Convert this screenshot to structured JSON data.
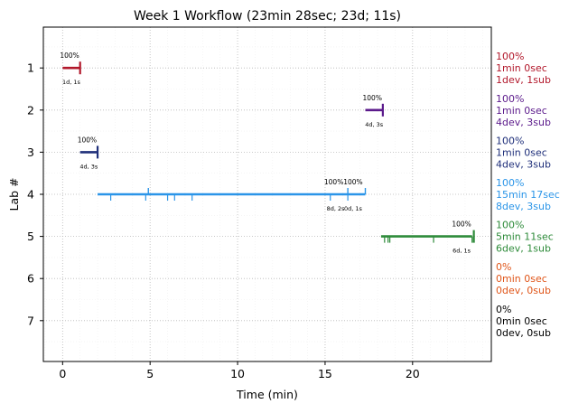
{
  "chart_data": {
    "type": "timeline",
    "title": "Week 1 Workflow (23min 28sec; 23d; 11s)",
    "xlabel": "Time (min)",
    "ylabel": "Lab #",
    "xlim": [
      -1.1,
      24.5
    ],
    "ylim": [
      7.97,
      0.03
    ],
    "xticks": [
      0,
      5,
      10,
      15,
      20
    ],
    "yticks": [
      1,
      2,
      3,
      4,
      5,
      6,
      7
    ],
    "grid": true,
    "labs": [
      {
        "lab": 1,
        "color": "#b2182b",
        "bar": [
          0,
          1.0
        ],
        "ticks": [],
        "tall_ticks": [],
        "end_markers": [
          1.0
        ],
        "pct_labels": [
          {
            "x": 0.4,
            "text": "100%"
          }
        ],
        "count_labels": [
          {
            "x": 0.5,
            "text": "1d, 1s"
          }
        ],
        "right": [
          "100%",
          "1min 0sec",
          "1dev, 1sub"
        ]
      },
      {
        "lab": 2,
        "color": "#5b1a8b",
        "bar": [
          17.3,
          18.3
        ],
        "ticks": [],
        "tall_ticks": [],
        "end_markers": [
          18.3
        ],
        "pct_labels": [
          {
            "x": 17.7,
            "text": "100%"
          }
        ],
        "count_labels": [
          {
            "x": 17.8,
            "text": "4d, 3s"
          }
        ],
        "right": [
          "100%",
          "1min 0sec",
          "4dev, 3sub"
        ]
      },
      {
        "lab": 3,
        "color": "#1f2f7a",
        "bar": [
          1.0,
          2.0
        ],
        "ticks": [],
        "tall_ticks": [],
        "end_markers": [
          2.0
        ],
        "pct_labels": [
          {
            "x": 1.4,
            "text": "100%"
          }
        ],
        "count_labels": [
          {
            "x": 1.5,
            "text": "4d, 3s"
          }
        ],
        "right": [
          "100%",
          "1min 0sec",
          "4dev, 3sub"
        ]
      },
      {
        "lab": 4,
        "color": "#2b95e8",
        "bar": [
          2.0,
          17.3
        ],
        "ticks": [
          2.75,
          4.75,
          6.0,
          6.4,
          7.4,
          15.3,
          16.3
        ],
        "tall_ticks": [
          4.9,
          16.3,
          17.3
        ],
        "end_markers": [],
        "pct_labels": [
          {
            "x": 15.5,
            "text": "100%"
          },
          {
            "x": 16.6,
            "text": "100%"
          }
        ],
        "count_labels": [
          {
            "x": 15.6,
            "text": "8d, 2s"
          },
          {
            "x": 16.6,
            "text": "0d, 1s"
          }
        ],
        "right": [
          "100%",
          "15min 17sec",
          "8dev, 3sub"
        ]
      },
      {
        "lab": 5,
        "color": "#2e8b3a",
        "bar": [
          18.2,
          23.4
        ],
        "ticks": [
          18.4,
          18.6,
          18.7,
          21.2,
          23.4
        ],
        "tall_ticks": [],
        "end_markers": [
          23.5
        ],
        "pct_labels": [
          {
            "x": 22.8,
            "text": "100%"
          }
        ],
        "count_labels": [
          {
            "x": 22.8,
            "text": "6d, 1s"
          }
        ],
        "right": [
          "100%",
          "5min 11sec",
          "6dev, 1sub"
        ]
      },
      {
        "lab": 6,
        "color": "#e0561a",
        "bar": null,
        "ticks": [],
        "tall_ticks": [],
        "end_markers": [],
        "pct_labels": [],
        "count_labels": [],
        "right": [
          "0%",
          "0min 0sec",
          "0dev, 0sub"
        ]
      },
      {
        "lab": 7,
        "color": "#000000",
        "bar": null,
        "ticks": [],
        "tall_ticks": [],
        "end_markers": [],
        "pct_labels": [],
        "count_labels": [],
        "right": [
          "0%",
          "0min 0sec",
          "0dev, 0sub"
        ]
      }
    ]
  }
}
